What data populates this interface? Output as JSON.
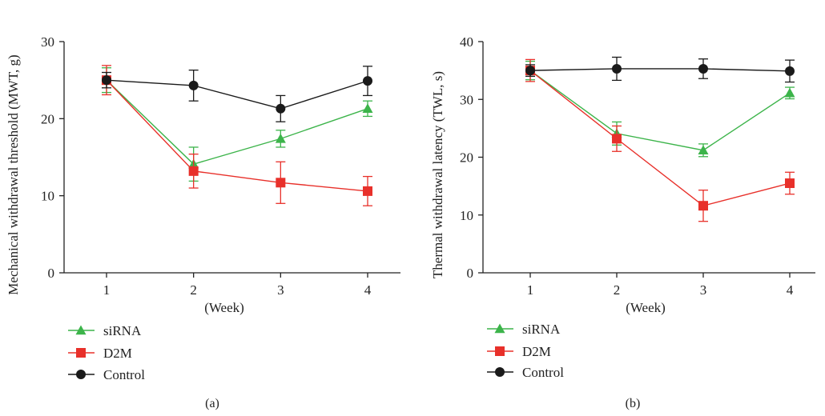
{
  "chart_data": [
    {
      "type": "line",
      "panel_label": "(a)",
      "xlabel": "(Week)",
      "ylabel": "Mechanical withdrawal threshold (MWT, g)",
      "x": [
        1,
        2,
        3,
        4
      ],
      "x_tick_labels": [
        "1",
        "2",
        "3",
        "4"
      ],
      "ylim": [
        0,
        30
      ],
      "y_ticks": [
        0,
        10,
        20,
        30
      ],
      "grid": false,
      "legend_position": "bottom-left, below plot",
      "series": [
        {
          "name": "siRNA",
          "color": "#3cb44a",
          "marker": "triangle",
          "values": [
            25.0,
            14.1,
            17.4,
            21.3
          ],
          "error": [
            1.6,
            2.2,
            1.1,
            1.0
          ]
        },
        {
          "name": "D2M",
          "color": "#e8302a",
          "marker": "square",
          "values": [
            25.0,
            13.2,
            11.7,
            10.6
          ],
          "error": [
            1.9,
            2.2,
            2.7,
            1.9
          ]
        },
        {
          "name": "Control",
          "color": "#1a1a1a",
          "marker": "circle",
          "values": [
            25.0,
            24.3,
            21.3,
            24.9
          ],
          "error": [
            1.0,
            2.0,
            1.7,
            1.9
          ]
        }
      ]
    },
    {
      "type": "line",
      "panel_label": "(b)",
      "xlabel": "(Week)",
      "ylabel": "Thermal withdrawal latency (TWL, s)",
      "x": [
        1,
        2,
        3,
        4
      ],
      "x_tick_labels": [
        "1",
        "2",
        "3",
        "4"
      ],
      "ylim": [
        0,
        40
      ],
      "y_ticks": [
        0,
        10,
        20,
        30,
        40
      ],
      "grid": false,
      "legend_position": "bottom-left, below plot",
      "series": [
        {
          "name": "siRNA",
          "color": "#3cb44a",
          "marker": "triangle",
          "values": [
            35.0,
            24.1,
            21.2,
            31.1
          ],
          "error": [
            1.6,
            2.0,
            1.1,
            1.0
          ]
        },
        {
          "name": "D2M",
          "color": "#e8302a",
          "marker": "square",
          "values": [
            35.0,
            23.2,
            11.6,
            15.5
          ],
          "error": [
            1.9,
            2.2,
            2.7,
            1.9
          ]
        },
        {
          "name": "Control",
          "color": "#1a1a1a",
          "marker": "circle",
          "values": [
            35.0,
            35.3,
            35.3,
            34.9
          ],
          "error": [
            1.0,
            2.0,
            1.7,
            1.9
          ]
        }
      ]
    }
  ]
}
